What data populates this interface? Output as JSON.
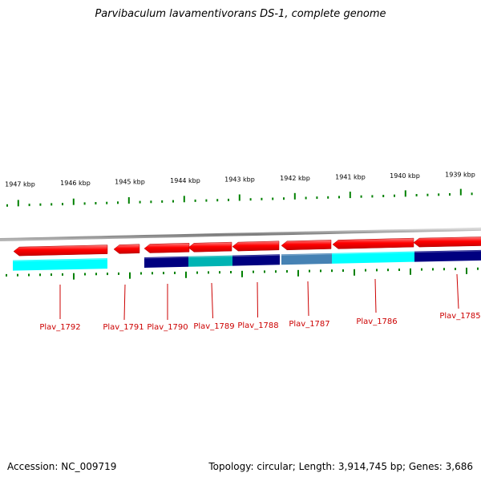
{
  "title": "Parvibaculum lavamentivorans DS-1, complete genome",
  "footer": {
    "accession_label": "Accession: NC_009719",
    "topology_label": "Topology: circular; Length: 3,914,745 bp; Genes: 3,686"
  },
  "scale_labels": [
    "1947 kbp",
    "1946 kbp",
    "1945 kbp",
    "1944 kbp",
    "1943 kbp",
    "1942 kbp",
    "1941 kbp",
    "1940 kbp",
    "1939 kbp"
  ],
  "genes": [
    {
      "name": "Plav_1792",
      "strand": "forward-left",
      "lower_color": "#00ffff"
    },
    {
      "name": "Plav_1791",
      "strand": "forward-left",
      "lower_color": null
    },
    {
      "name": "Plav_1790",
      "strand": "forward-left",
      "lower_color": "#000080"
    },
    {
      "name": "Plav_1789",
      "strand": "forward-left",
      "lower_color": "#00b3b3"
    },
    {
      "name": "Plav_1788",
      "strand": "forward-left",
      "lower_color": "#000080"
    },
    {
      "name": "Plav_1787",
      "strand": "forward-left",
      "lower_color": "#4682b4"
    },
    {
      "name": "Plav_1786",
      "strand": "forward-left",
      "lower_color": "#00ffff"
    },
    {
      "name": "Plav_1785",
      "strand": "forward-left",
      "lower_color": "#000080"
    }
  ],
  "colors": {
    "gene_arrow": "#ff0000",
    "tick": "#008000",
    "label": "#cc0000",
    "backbone": "#808080"
  }
}
